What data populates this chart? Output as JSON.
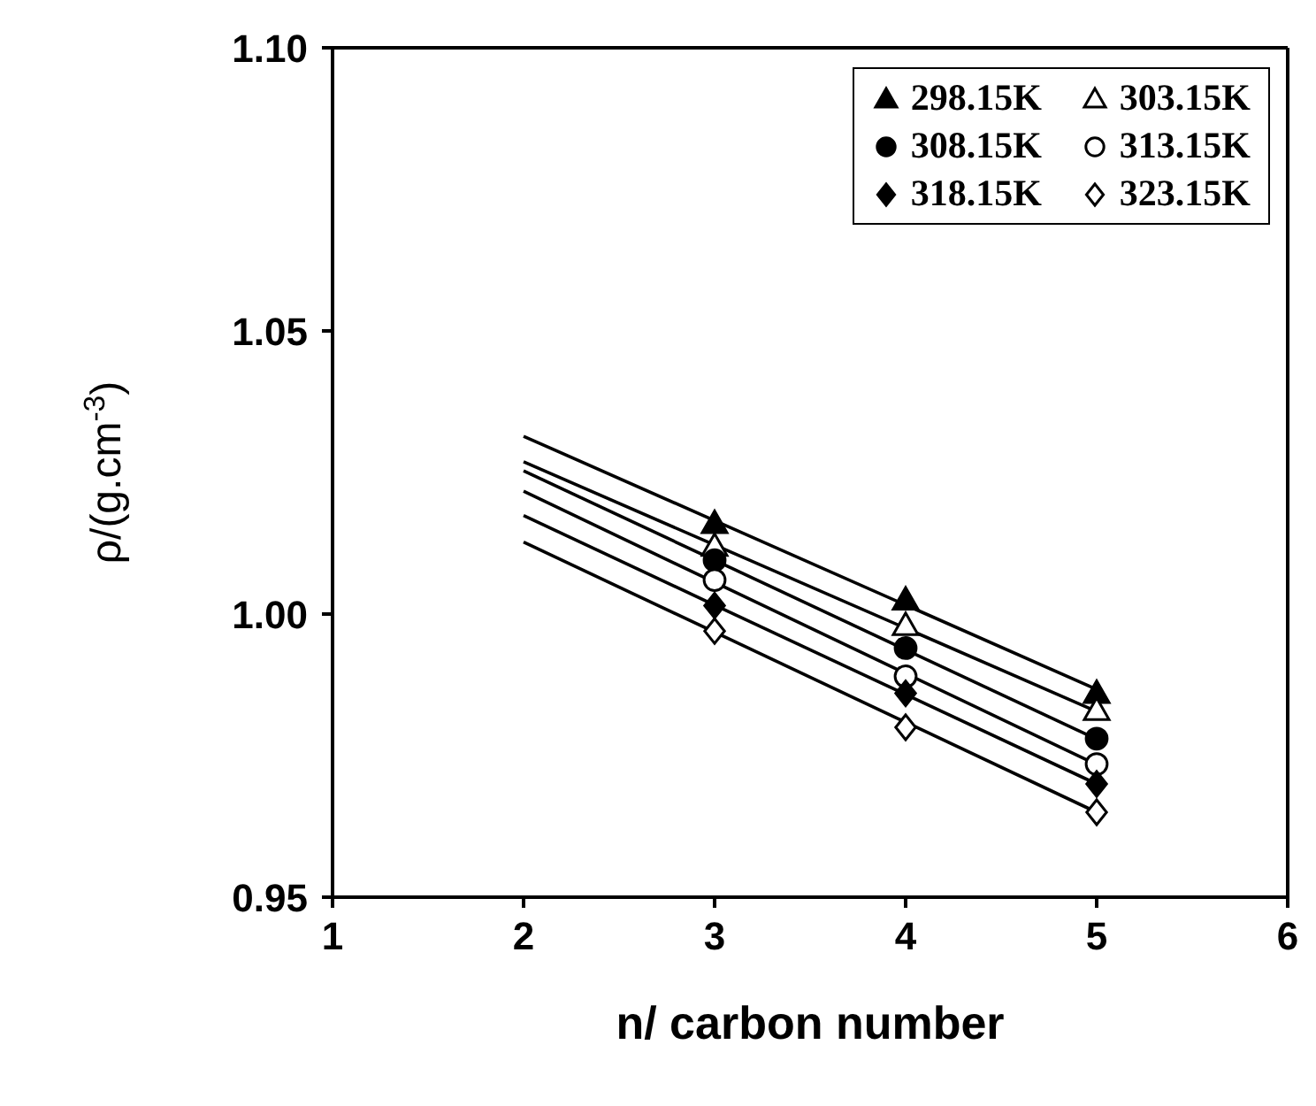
{
  "chart_data": {
    "type": "scatter",
    "xlabel": "n/ carbon number",
    "ylabel": "ρ/(g.cm$^{-3}$)",
    "xlim": [
      1,
      6
    ],
    "xticks": [
      1,
      2,
      3,
      4,
      5,
      6
    ],
    "ylim": [
      0.95,
      1.1
    ],
    "yticks": [
      0.95,
      {
        "value": 1.0,
        "label": "1.00"
      },
      1.05,
      {
        "value": 1.1,
        "label": "1.10"
      }
    ],
    "legend": "top right",
    "series": [
      {
        "name": "298.15K",
        "color": "#000000",
        "marker": "triangle",
        "x": [
          3,
          4,
          5
        ],
        "values": [
          1.016,
          1.0025,
          0.986
        ]
      },
      {
        "name": "303.15K",
        "color": "#ffffff",
        "marker": "triangle",
        "x": [
          3,
          4,
          5
        ],
        "values": [
          1.012,
          0.998,
          0.983
        ]
      },
      {
        "name": "308.15K",
        "color": "#000000",
        "marker": "circle",
        "x": [
          3,
          4,
          5
        ],
        "values": [
          1.0095,
          0.994,
          0.978
        ]
      },
      {
        "name": "313.15K",
        "color": "#ffffff",
        "marker": "circle",
        "x": [
          3,
          4,
          5
        ],
        "values": [
          1.006,
          0.989,
          0.9735
        ]
      },
      {
        "name": "318.15K",
        "color": "#000000",
        "marker": "diamond",
        "x": [
          3,
          4,
          5
        ],
        "values": [
          1.0015,
          0.986,
          0.97
        ]
      },
      {
        "name": "323.15K",
        "color": "#ffffff",
        "marker": "diamond",
        "x": [
          3,
          4,
          5
        ],
        "values": [
          0.997,
          0.98,
          0.965
        ]
      },
      {
        "type": "line",
        "color": "#000000",
        "marker": "none",
        "x": [
          2,
          3,
          4,
          5
        ],
        "values": [
          1.0314,
          1.0165,
          1.0016,
          0.9867
        ]
      },
      {
        "type": "line",
        "color": "#000000",
        "marker": "none",
        "x": [
          2,
          3,
          4,
          5
        ],
        "values": [
          1.0269,
          1.0122,
          0.9975,
          0.9828
        ]
      },
      {
        "type": "line",
        "color": "#000000",
        "marker": "none",
        "x": [
          2,
          3,
          4,
          5
        ],
        "values": [
          1.0253,
          1.0095,
          0.9937,
          0.9779
        ]
      },
      {
        "type": "line",
        "color": "#000000",
        "marker": "none",
        "x": [
          2,
          3,
          4,
          5
        ],
        "values": [
          1.0217,
          1.0056,
          0.9895,
          0.9734
        ]
      },
      {
        "type": "line",
        "color": "#000000",
        "marker": "none",
        "x": [
          2,
          3,
          4,
          5
        ],
        "values": [
          1.0174,
          1.0016,
          0.9858,
          0.97
        ]
      },
      {
        "type": "line",
        "color": "#000000",
        "marker": "none",
        "x": [
          2,
          3,
          4,
          5
        ],
        "values": [
          1.0127,
          0.9968,
          0.9809,
          0.965
        ]
      }
    ]
  }
}
